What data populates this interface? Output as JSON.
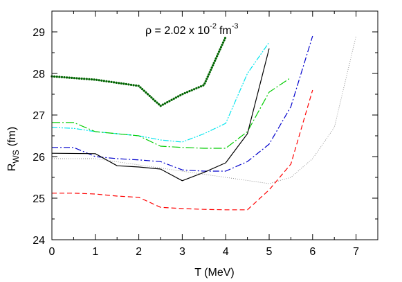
{
  "chart_data": {
    "type": "line",
    "title": "",
    "annotation": "ρ = 2.02 x 10",
    "annotation_exponent": "-2",
    "annotation_unit": "fm",
    "annotation_unit_exponent": "-3",
    "xlabel": "T (MeV)",
    "ylabel_main": "R",
    "ylabel_sub": "WS",
    "ylabel_unit": "(fm)",
    "xlim": [
      0,
      7.5
    ],
    "ylim": [
      24,
      29.5
    ],
    "xticks": [
      "0",
      "1",
      "2",
      "3",
      "4",
      "5",
      "6",
      "7"
    ],
    "yticks": [
      "24",
      "25",
      "26",
      "27",
      "28",
      "29"
    ],
    "grid": false,
    "legend": "none",
    "series": [
      {
        "color": "#006400",
        "style": "dotted-thick",
        "x": [
          0,
          1,
          2,
          2.5,
          3,
          3.5,
          4
        ],
        "y": [
          27.93,
          27.85,
          27.7,
          27.22,
          27.5,
          27.72,
          28.88
        ]
      },
      {
        "color": "#00e5ee",
        "style": "dash-dot-dot",
        "x": [
          0,
          0.5,
          1,
          1.5,
          2,
          2.5,
          3,
          3.5,
          4,
          4.5,
          5
        ],
        "y": [
          26.7,
          26.68,
          26.6,
          26.55,
          26.5,
          26.4,
          26.35,
          26.55,
          26.8,
          28.0,
          28.75
        ]
      },
      {
        "color": "#00cc00",
        "style": "dash-dot-long",
        "x": [
          0,
          0.5,
          1,
          1.5,
          2,
          2.5,
          3,
          3.5,
          4,
          4.5,
          5,
          5.5
        ],
        "y": [
          26.82,
          26.82,
          26.6,
          26.55,
          26.5,
          26.25,
          26.22,
          26.2,
          26.2,
          26.6,
          27.55,
          27.9
        ]
      },
      {
        "color": "#0000cc",
        "style": "dash-dot",
        "x": [
          0,
          0.5,
          1,
          1.5,
          2,
          2.5,
          3,
          3.5,
          4,
          4.5,
          5,
          5.5,
          6
        ],
        "y": [
          26.22,
          26.22,
          26.0,
          25.95,
          25.92,
          25.88,
          25.68,
          25.65,
          25.65,
          25.88,
          26.3,
          27.2,
          28.9
        ]
      },
      {
        "color": "#000000",
        "style": "solid",
        "x": [
          0,
          1,
          1.5,
          2,
          2.5,
          3,
          3.5,
          4,
          4.5,
          5
        ],
        "y": [
          26.08,
          26.07,
          25.78,
          25.75,
          25.7,
          25.42,
          25.62,
          25.85,
          26.55,
          28.6
        ]
      },
      {
        "color": "#888888",
        "style": "dotted-fine",
        "x": [
          0,
          1,
          2,
          3,
          4,
          5,
          5.5,
          6,
          6.5,
          7
        ],
        "y": [
          25.95,
          25.95,
          25.8,
          25.65,
          25.5,
          25.35,
          25.5,
          25.95,
          26.7,
          28.9
        ]
      },
      {
        "color": "#ff0000",
        "style": "dashed",
        "x": [
          0,
          0.5,
          1,
          1.5,
          2,
          2.5,
          3,
          3.5,
          4,
          4.5,
          5,
          5.5,
          6
        ],
        "y": [
          25.12,
          25.12,
          25.1,
          25.05,
          25.02,
          24.78,
          24.75,
          24.73,
          24.72,
          24.72,
          25.2,
          25.82,
          27.6
        ]
      }
    ]
  }
}
